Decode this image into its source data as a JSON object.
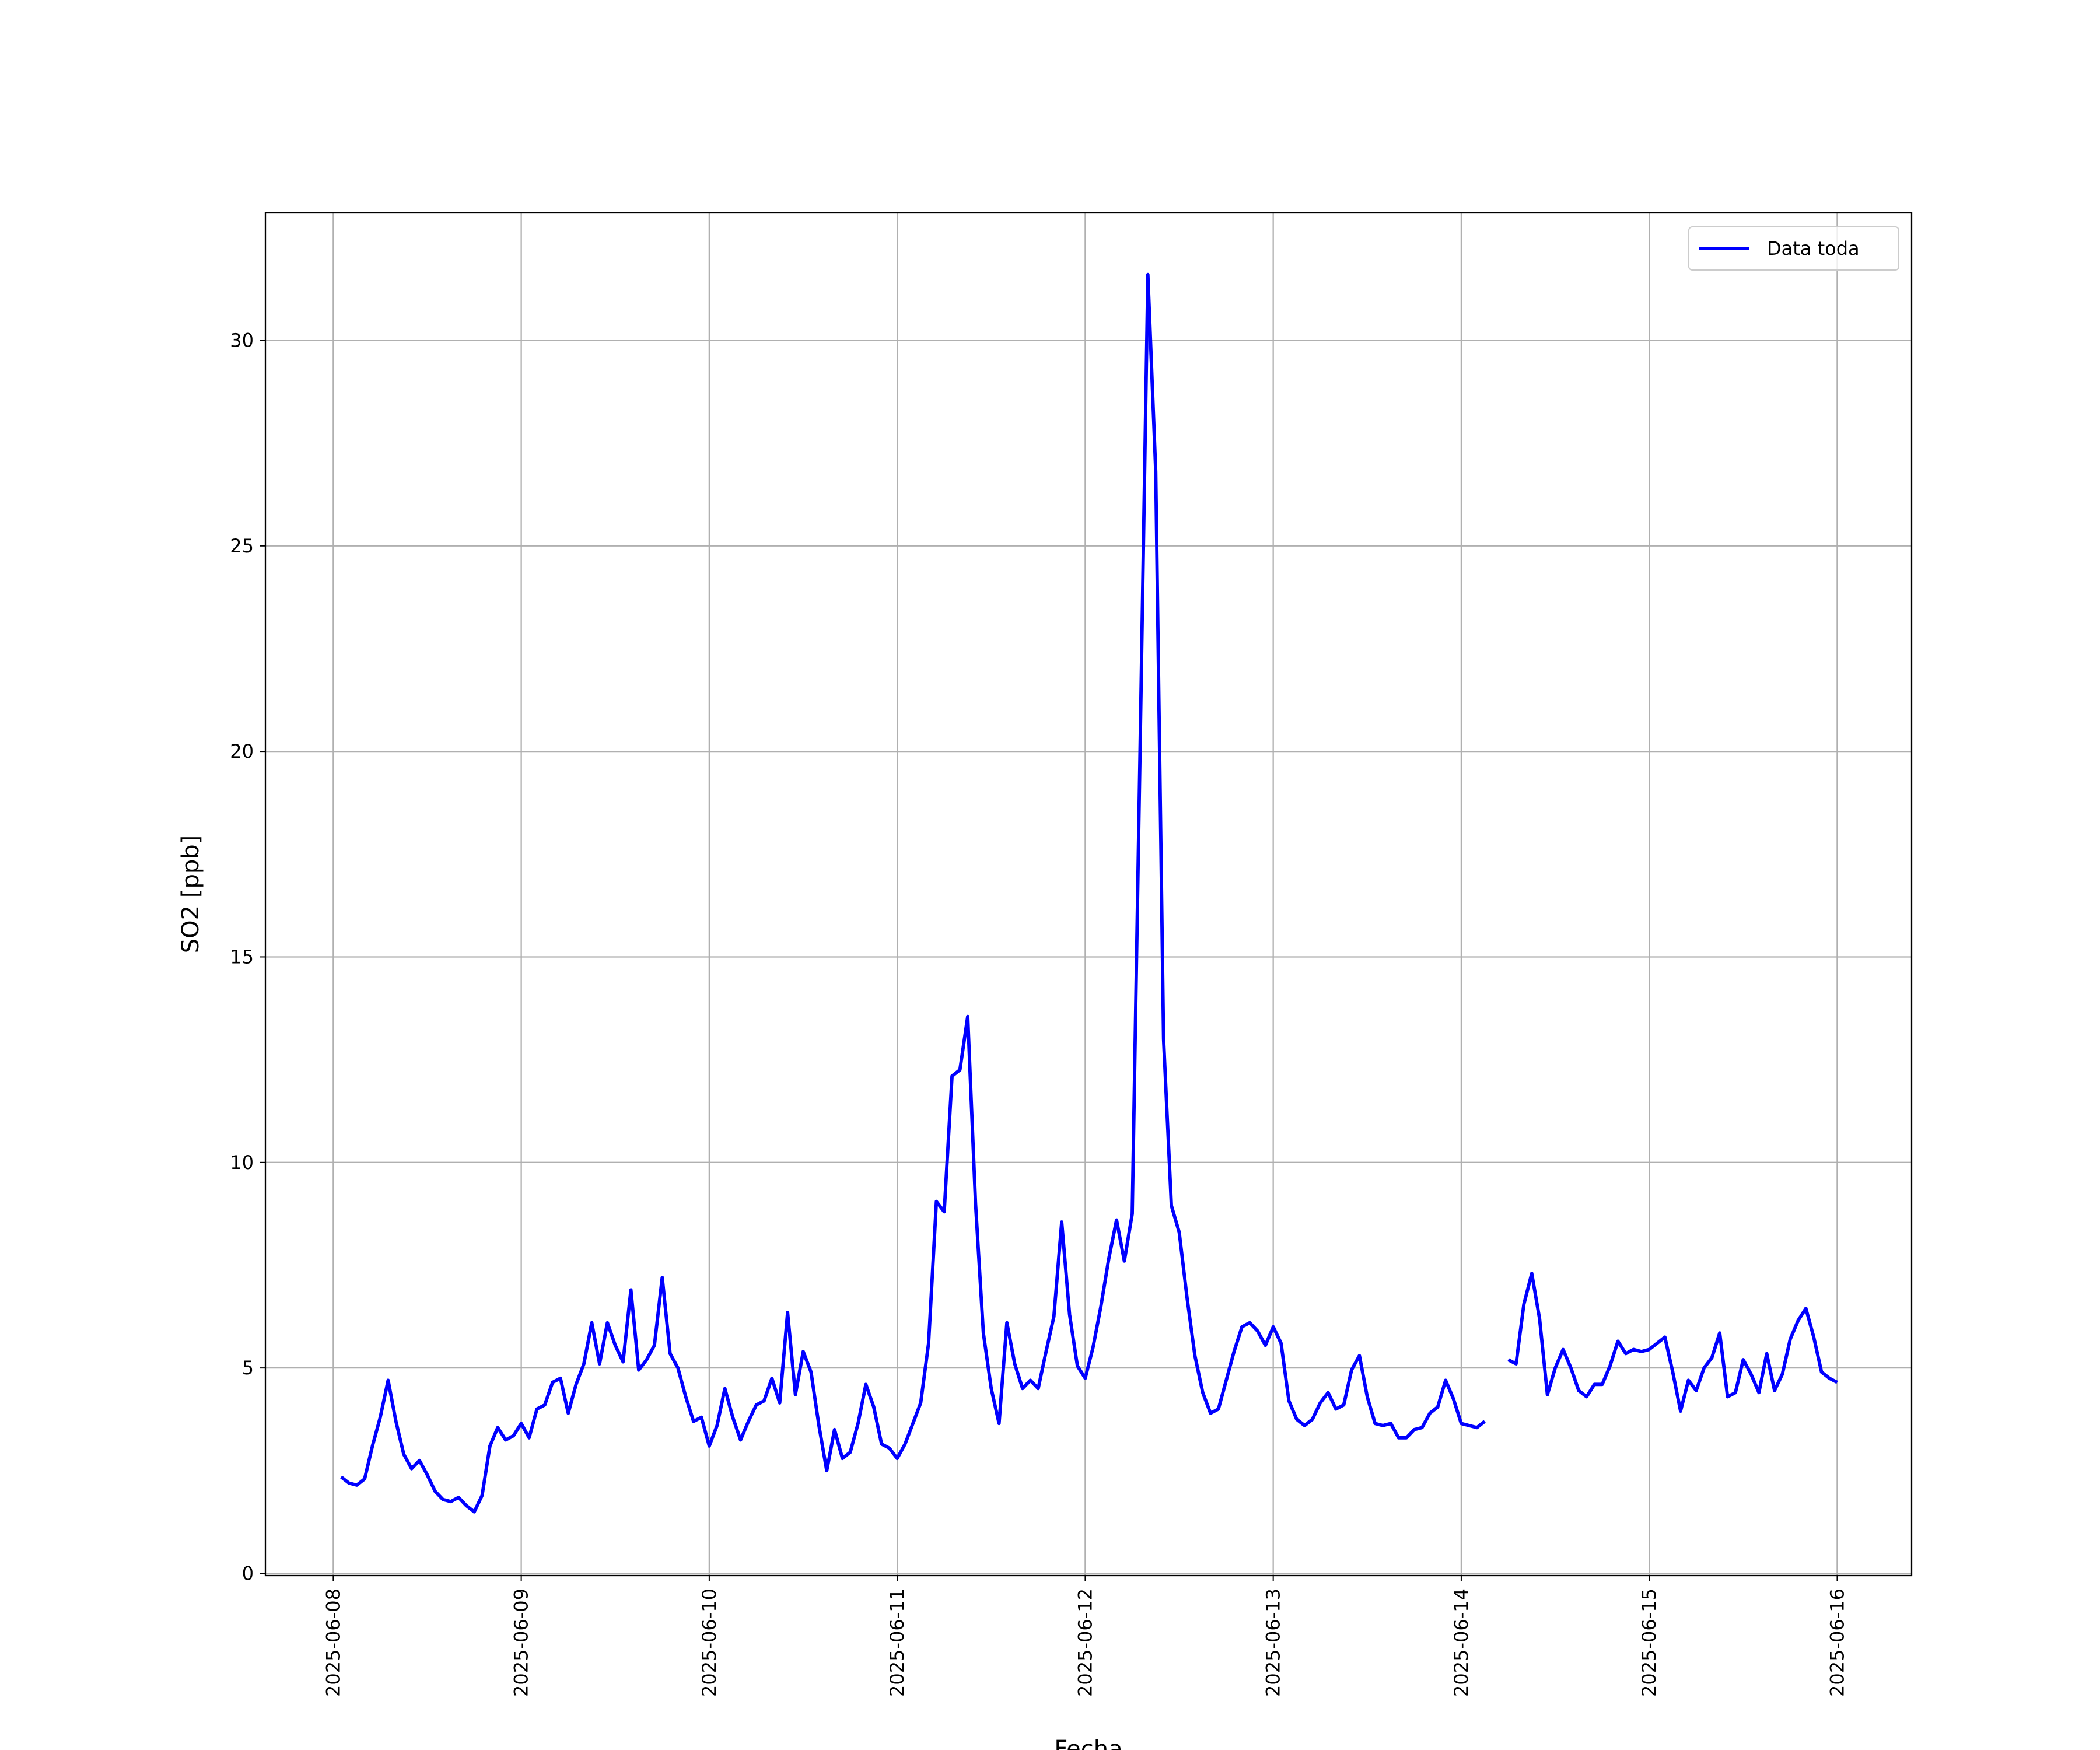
{
  "chart_data": {
    "type": "line",
    "xlabel": "Fecha",
    "ylabel": "SO2 [ppb]",
    "x": [
      "2025-06-08 01:00",
      "2025-06-08 02:00",
      "2025-06-08 03:00",
      "2025-06-08 04:00",
      "2025-06-08 05:00",
      "2025-06-08 06:00",
      "2025-06-08 07:00",
      "2025-06-08 08:00",
      "2025-06-08 09:00",
      "2025-06-08 10:00",
      "2025-06-08 11:00",
      "2025-06-08 12:00",
      "2025-06-08 13:00",
      "2025-06-08 14:00",
      "2025-06-08 15:00",
      "2025-06-08 16:00",
      "2025-06-08 17:00",
      "2025-06-08 18:00",
      "2025-06-08 19:00",
      "2025-06-08 20:00",
      "2025-06-08 21:00",
      "2025-06-08 22:00",
      "2025-06-08 23:00",
      "2025-06-09 00:00",
      "2025-06-09 01:00",
      "2025-06-09 02:00",
      "2025-06-09 03:00",
      "2025-06-09 04:00",
      "2025-06-09 05:00",
      "2025-06-09 06:00",
      "2025-06-09 07:00",
      "2025-06-09 08:00",
      "2025-06-09 09:00",
      "2025-06-09 10:00",
      "2025-06-09 11:00",
      "2025-06-09 12:00",
      "2025-06-09 13:00",
      "2025-06-09 14:00",
      "2025-06-09 15:00",
      "2025-06-09 16:00",
      "2025-06-09 17:00",
      "2025-06-09 18:00",
      "2025-06-09 19:00",
      "2025-06-09 20:00",
      "2025-06-09 21:00",
      "2025-06-09 22:00",
      "2025-06-09 23:00",
      "2025-06-10 00:00",
      "2025-06-10 01:00",
      "2025-06-10 02:00",
      "2025-06-10 03:00",
      "2025-06-10 04:00",
      "2025-06-10 05:00",
      "2025-06-10 06:00",
      "2025-06-10 07:00",
      "2025-06-10 08:00",
      "2025-06-10 09:00",
      "2025-06-10 10:00",
      "2025-06-10 11:00",
      "2025-06-10 12:00",
      "2025-06-10 13:00",
      "2025-06-10 14:00",
      "2025-06-10 15:00",
      "2025-06-10 16:00",
      "2025-06-10 17:00",
      "2025-06-10 18:00",
      "2025-06-10 19:00",
      "2025-06-10 20:00",
      "2025-06-10 21:00",
      "2025-06-10 22:00",
      "2025-06-10 23:00",
      "2025-06-11 00:00",
      "2025-06-11 01:00",
      "2025-06-11 02:00",
      "2025-06-11 03:00",
      "2025-06-11 04:00",
      "2025-06-11 05:00",
      "2025-06-11 06:00",
      "2025-06-11 07:00",
      "2025-06-11 08:00",
      "2025-06-11 09:00",
      "2025-06-11 10:00",
      "2025-06-11 11:00",
      "2025-06-11 12:00",
      "2025-06-11 13:00",
      "2025-06-11 14:00",
      "2025-06-11 15:00",
      "2025-06-11 16:00",
      "2025-06-11 17:00",
      "2025-06-11 18:00",
      "2025-06-11 19:00",
      "2025-06-11 20:00",
      "2025-06-11 21:00",
      "2025-06-11 22:00",
      "2025-06-11 23:00",
      "2025-06-12 00:00",
      "2025-06-12 01:00",
      "2025-06-12 02:00",
      "2025-06-12 03:00",
      "2025-06-12 04:00",
      "2025-06-12 05:00",
      "2025-06-12 06:00",
      "2025-06-12 07:00",
      "2025-06-12 08:00",
      "2025-06-12 09:00",
      "2025-06-12 10:00",
      "2025-06-12 11:00",
      "2025-06-12 12:00",
      "2025-06-12 13:00",
      "2025-06-12 14:00",
      "2025-06-12 15:00",
      "2025-06-12 16:00",
      "2025-06-12 17:00",
      "2025-06-12 18:00",
      "2025-06-12 19:00",
      "2025-06-12 20:00",
      "2025-06-12 21:00",
      "2025-06-12 22:00",
      "2025-06-12 23:00",
      "2025-06-13 00:00",
      "2025-06-13 01:00",
      "2025-06-13 02:00",
      "2025-06-13 03:00",
      "2025-06-13 04:00",
      "2025-06-13 05:00",
      "2025-06-13 06:00",
      "2025-06-13 07:00",
      "2025-06-13 08:00",
      "2025-06-13 09:00",
      "2025-06-13 10:00",
      "2025-06-13 11:00",
      "2025-06-13 12:00",
      "2025-06-13 13:00",
      "2025-06-13 14:00",
      "2025-06-13 15:00",
      "2025-06-13 16:00",
      "2025-06-13 17:00",
      "2025-06-13 18:00",
      "2025-06-13 19:00",
      "2025-06-13 20:00",
      "2025-06-13 21:00",
      "2025-06-13 22:00",
      "2025-06-13 23:00",
      "2025-06-14 00:00",
      "2025-06-14 01:00",
      "2025-06-14 02:00",
      "2025-06-14 03:00",
      "2025-06-14 04:00",
      "2025-06-14 05:00",
      "2025-06-14 06:00",
      "2025-06-14 07:00",
      "2025-06-14 08:00",
      "2025-06-14 09:00",
      "2025-06-14 10:00",
      "2025-06-14 11:00",
      "2025-06-14 12:00",
      "2025-06-14 13:00",
      "2025-06-14 14:00",
      "2025-06-14 15:00",
      "2025-06-14 16:00",
      "2025-06-14 17:00",
      "2025-06-14 18:00",
      "2025-06-14 19:00",
      "2025-06-14 20:00",
      "2025-06-14 21:00",
      "2025-06-14 22:00",
      "2025-06-14 23:00",
      "2025-06-15 00:00",
      "2025-06-15 01:00",
      "2025-06-15 02:00",
      "2025-06-15 03:00",
      "2025-06-15 04:00",
      "2025-06-15 05:00",
      "2025-06-15 06:00",
      "2025-06-15 07:00",
      "2025-06-15 08:00",
      "2025-06-15 09:00",
      "2025-06-15 10:00",
      "2025-06-15 11:00",
      "2025-06-15 12:00",
      "2025-06-15 13:00",
      "2025-06-15 14:00",
      "2025-06-15 15:00",
      "2025-06-15 16:00",
      "2025-06-15 17:00",
      "2025-06-15 18:00",
      "2025-06-15 19:00",
      "2025-06-15 20:00",
      "2025-06-15 21:00",
      "2025-06-15 22:00",
      "2025-06-15 23:00",
      "2025-06-16 00:00"
    ],
    "series": [
      {
        "name": "Data toda",
        "color": "#0000ff",
        "values": [
          2.35,
          2.2,
          2.15,
          2.3,
          3.1,
          3.8,
          4.7,
          3.7,
          2.9,
          2.55,
          2.75,
          2.4,
          2.0,
          1.8,
          1.75,
          1.85,
          1.65,
          1.5,
          1.9,
          3.1,
          3.55,
          3.25,
          3.35,
          3.65,
          3.3,
          4.0,
          4.1,
          4.65,
          4.75,
          3.9,
          4.6,
          5.1,
          6.1,
          5.1,
          6.1,
          5.55,
          5.15,
          6.9,
          4.95,
          5.2,
          5.55,
          7.2,
          5.35,
          5.0,
          4.3,
          3.7,
          3.8,
          3.1,
          3.6,
          4.5,
          3.8,
          3.25,
          3.7,
          4.1,
          4.2,
          4.75,
          4.15,
          6.35,
          4.35,
          5.4,
          4.9,
          3.6,
          2.5,
          3.5,
          2.8,
          2.95,
          3.65,
          4.6,
          4.05,
          3.15,
          3.05,
          2.8,
          3.15,
          3.65,
          4.15,
          5.6,
          9.05,
          8.8,
          12.1,
          12.25,
          13.55,
          9.0,
          5.85,
          4.5,
          3.65,
          6.1,
          5.1,
          4.5,
          4.7,
          4.5,
          5.4,
          6.25,
          8.55,
          6.3,
          5.05,
          4.75,
          5.5,
          6.5,
          7.65,
          8.6,
          7.6,
          8.75,
          20,
          31.6,
          26.8,
          13.0,
          8.95,
          8.3,
          6.7,
          5.3,
          4.4,
          3.9,
          4.0,
          4.7,
          5.4,
          6.0,
          6.1,
          5.9,
          5.55,
          6.0,
          5.6,
          4.2,
          3.75,
          3.6,
          3.75,
          4.15,
          4.4,
          4.0,
          4.1,
          4.95,
          5.3,
          4.3,
          3.65,
          3.6,
          3.65,
          3.3,
          3.3,
          3.5,
          3.55,
          3.9,
          4.05,
          4.7,
          4.25,
          3.65,
          3.6,
          3.55,
          3.7,
          null,
          null,
          5.2,
          5.1,
          6.55,
          7.3,
          6.2,
          4.35,
          5.0,
          5.45,
          5.0,
          4.45,
          4.3,
          4.6,
          4.6,
          5.05,
          5.65,
          5.35,
          5.45,
          5.4,
          5.45,
          5.6,
          5.75,
          4.9,
          3.95,
          4.7,
          4.45,
          5.0,
          5.25,
          5.85,
          4.3,
          4.4,
          5.2,
          4.85,
          4.4,
          5.35,
          4.45,
          4.85,
          5.7,
          6.15,
          6.45,
          5.75,
          4.9,
          4.75,
          4.65
        ]
      }
    ],
    "xlim": [
      "2025-06-07 15:20",
      "2025-06-16 09:30"
    ],
    "xticks": [
      "2025-06-08",
      "2025-06-09",
      "2025-06-10",
      "2025-06-11",
      "2025-06-12",
      "2025-06-13",
      "2025-06-14",
      "2025-06-15",
      "2025-06-16"
    ],
    "ylim": [
      -0.05,
      33.1
    ],
    "yticks": [
      0,
      5,
      10,
      15,
      20,
      25,
      30
    ],
    "grid": true,
    "legend": "upper right"
  }
}
